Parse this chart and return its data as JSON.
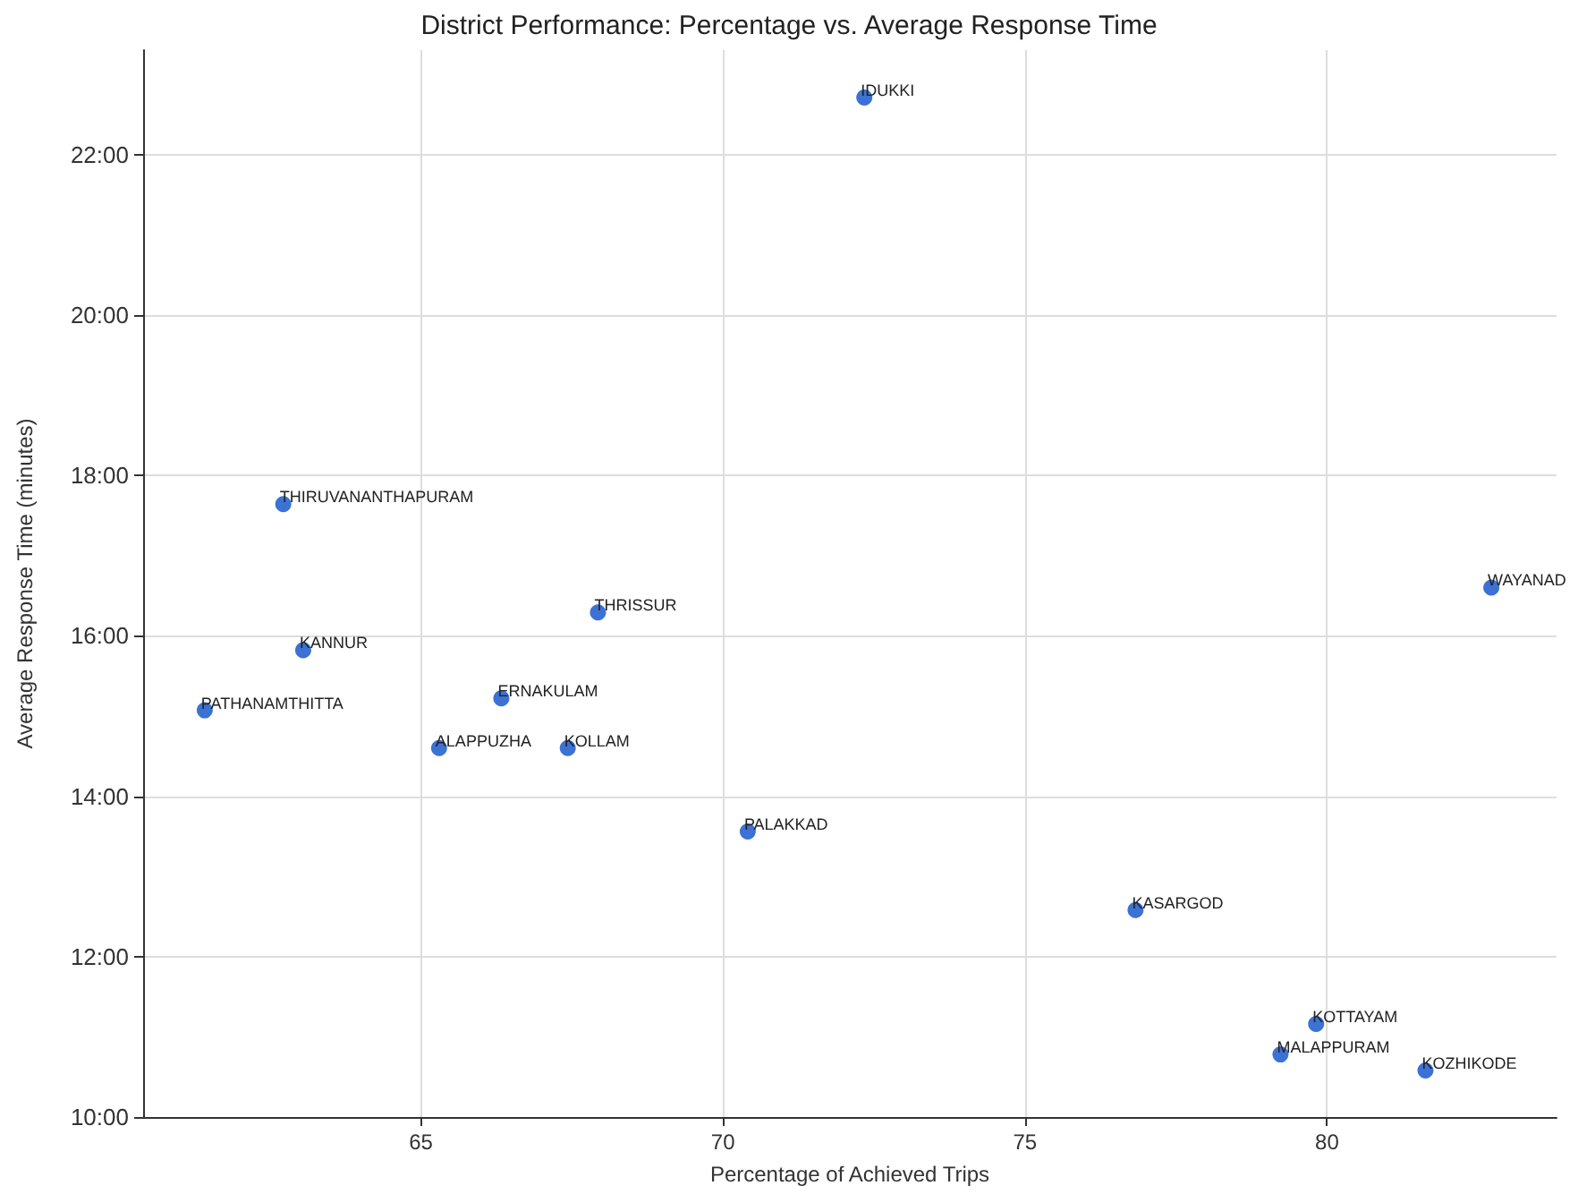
{
  "chart_data": {
    "type": "scatter",
    "title": "District Performance: Percentage vs. Average Response Time",
    "xlabel": "Percentage of Achieved Trips",
    "ylabel": "Average Response Time (minutes)",
    "x": [
      72.34,
      62.72,
      61.42,
      63.05,
      65.3,
      66.33,
      67.43,
      67.93,
      70.41,
      82.72,
      76.83,
      79.82,
      79.23,
      81.63
    ],
    "series": [
      {
        "color": "#0b4fc8",
        "values": [
          22.71,
          17.64,
          15.07,
          15.82,
          14.6,
          15.22,
          14.6,
          16.29,
          13.56,
          16.6,
          12.58,
          11.16,
          10.78,
          10.58
        ]
      }
    ],
    "annotations": [
      {
        "text": "IDUKKI",
        "x": 72.34,
        "y": 22.71
      },
      {
        "text": "THIRUVANANTHAPURAM",
        "x": 62.72,
        "y": 17.64
      },
      {
        "text": "PATHANAMTHITTA",
        "x": 61.42,
        "y": 15.07
      },
      {
        "text": "KANNUR",
        "x": 63.05,
        "y": 15.82
      },
      {
        "text": "ALAPPUZHA",
        "x": 65.3,
        "y": 14.6
      },
      {
        "text": "ERNAKULAM",
        "x": 66.33,
        "y": 15.22
      },
      {
        "text": "KOLLAM",
        "x": 67.43,
        "y": 14.6
      },
      {
        "text": "THRISSUR",
        "x": 67.93,
        "y": 16.29
      },
      {
        "text": "PALAKKAD",
        "x": 70.41,
        "y": 13.56
      },
      {
        "text": "WAYANAD",
        "x": 82.72,
        "y": 16.6
      },
      {
        "text": "KASARGOD",
        "x": 76.83,
        "y": 12.58
      },
      {
        "text": "KOTTAYAM",
        "x": 79.82,
        "y": 11.16
      },
      {
        "text": "MALAPPURAM",
        "x": 79.23,
        "y": 10.78
      },
      {
        "text": "KOZHIKODE",
        "x": 81.63,
        "y": 10.58
      }
    ],
    "xlim": [
      60.4,
      83.8
    ],
    "xticks": [
      65,
      70,
      75,
      80
    ],
    "ylim": [
      10,
      23.3
    ],
    "yticks": [
      {
        "value": 10,
        "label": "10:00"
      },
      {
        "value": 12,
        "label": "12:00"
      },
      {
        "value": 14,
        "label": "14:00"
      },
      {
        "value": 16,
        "label": "16:00"
      },
      {
        "value": 18,
        "label": "18:00"
      },
      {
        "value": 20,
        "label": "20:00"
      },
      {
        "value": 22,
        "label": "22:00"
      }
    ],
    "grid": true,
    "marker": "circle"
  }
}
